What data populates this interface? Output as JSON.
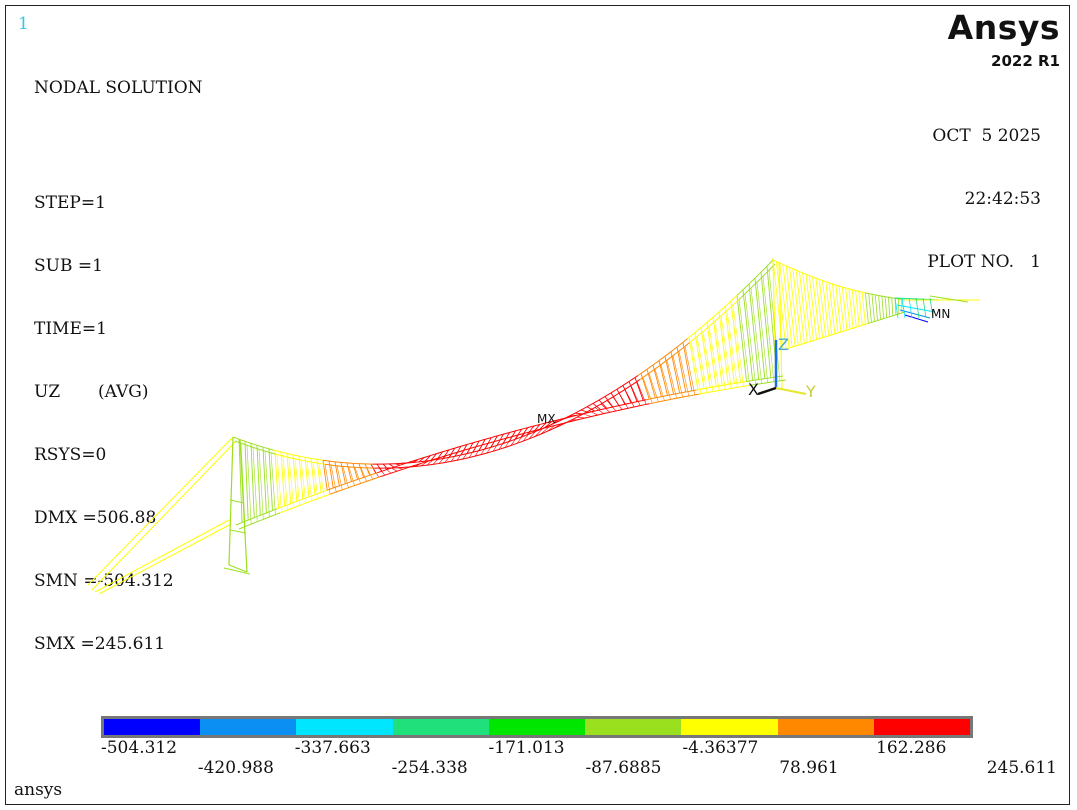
{
  "window_number": "1",
  "brand": {
    "name": "Ansys",
    "version": "2022 R1"
  },
  "info_lines": [
    "NODAL SOLUTION",
    "",
    "STEP=1",
    "SUB =1",
    "TIME=1",
    "UZ       (AVG)",
    "RSYS=0",
    "DMX =506.88",
    "SMN =-504.312",
    "SMX =245.611"
  ],
  "date": "OCT  5 2025",
  "time": "22:42:53",
  "plot_no": "PLOT NO.   1",
  "markers": {
    "mx": "MX",
    "mn": "MN"
  },
  "axes": {
    "x": "X",
    "y": "Y",
    "z": "Z"
  },
  "legend": {
    "colors": [
      "#0000ff",
      "#0b8ff2",
      "#00e6ff",
      "#1fe07a",
      "#00e600",
      "#9be01f",
      "#ffff00",
      "#ff8800",
      "#ff0000"
    ],
    "labels_top": [
      "-504.312",
      "-337.663",
      "-171.013",
      "-4.36377",
      "162.286"
    ],
    "labels_bottom": [
      "-420.988",
      "-254.338",
      "-87.6885",
      "78.961",
      "245.611"
    ]
  },
  "footer": "ansys"
}
